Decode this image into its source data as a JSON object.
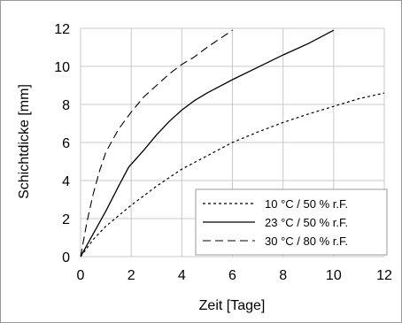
{
  "chart_data": {
    "type": "line",
    "title": "",
    "xlabel": "Zeit [Tage]",
    "ylabel": "Schichtdicke [mm]",
    "xlim": [
      0,
      12
    ],
    "ylim": [
      0,
      12
    ],
    "xticks": [
      0,
      2,
      4,
      6,
      8,
      10,
      12
    ],
    "yticks": [
      0,
      2,
      4,
      6,
      8,
      10,
      12
    ],
    "grid": true,
    "legend_position": "bottom-right",
    "series": [
      {
        "name": "10 °C / 50 % r.F.",
        "style": "dotted",
        "color": "#000000",
        "points": [
          [
            0,
            0
          ],
          [
            0.5,
            0.9
          ],
          [
            1,
            1.6
          ],
          [
            2,
            2.7
          ],
          [
            3,
            3.7
          ],
          [
            4,
            4.6
          ],
          [
            5,
            5.3
          ],
          [
            6,
            6.0
          ],
          [
            7,
            6.55
          ],
          [
            8,
            7.05
          ],
          [
            9,
            7.5
          ],
          [
            10,
            7.9
          ],
          [
            11,
            8.3
          ],
          [
            12,
            8.6
          ]
        ]
      },
      {
        "name": "23 °C / 50 % r.F.",
        "style": "solid",
        "color": "#000000",
        "points": [
          [
            0,
            0
          ],
          [
            0.5,
            1.2
          ],
          [
            1,
            2.4
          ],
          [
            1.5,
            3.7
          ],
          [
            1.9,
            4.7
          ],
          [
            2.5,
            5.6
          ],
          [
            3,
            6.4
          ],
          [
            3.5,
            7.1
          ],
          [
            4,
            7.7
          ],
          [
            4.5,
            8.2
          ],
          [
            5,
            8.6
          ],
          [
            6,
            9.3
          ],
          [
            7,
            9.95
          ],
          [
            8,
            10.6
          ],
          [
            9,
            11.2
          ],
          [
            10,
            11.9
          ]
        ]
      },
      {
        "name": "30 °C / 80 % r.F.",
        "style": "dashed",
        "color": "#000000",
        "points": [
          [
            0,
            0
          ],
          [
            0.25,
            1.8
          ],
          [
            0.5,
            3.3
          ],
          [
            0.75,
            4.5
          ],
          [
            1,
            5.5
          ],
          [
            1.5,
            6.7
          ],
          [
            2,
            7.6
          ],
          [
            2.5,
            8.4
          ],
          [
            3,
            9.0
          ],
          [
            3.5,
            9.6
          ],
          [
            4,
            10.1
          ],
          [
            4.5,
            10.5
          ],
          [
            5,
            11.0
          ],
          [
            5.5,
            11.45
          ],
          [
            6,
            11.9
          ]
        ]
      }
    ]
  }
}
